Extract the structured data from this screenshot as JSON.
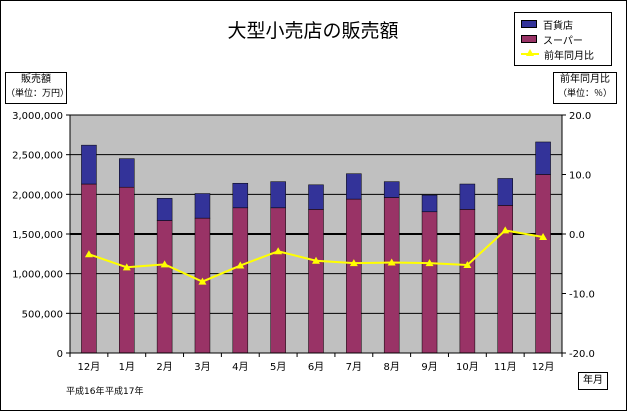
{
  "chart_data": {
    "type": "bar",
    "title": "大型小売店の販売額",
    "left_axis_label_line1": "販売額",
    "left_axis_label_line2": "（単位：万円）",
    "right_axis_label_line1": "前年同月比",
    "right_axis_label_line2": "（単位：％）",
    "x_axis_label": "年月",
    "era_label_1": "平成16年",
    "era_label_2": "平成17年",
    "categories": [
      "12月",
      "1月",
      "2月",
      "3月",
      "4月",
      "5月",
      "6月",
      "7月",
      "8月",
      "9月",
      "10月",
      "11月",
      "12月"
    ],
    "series": [
      {
        "name": "スーパー",
        "color": "#993366",
        "values": [
          2130000,
          2090000,
          1670000,
          1700000,
          1830000,
          1830000,
          1810000,
          1940000,
          1960000,
          1780000,
          1810000,
          1860000,
          2250000
        ]
      },
      {
        "name": "百貨店",
        "color": "#333399",
        "values": [
          490000,
          360000,
          280000,
          310000,
          310000,
          330000,
          310000,
          320000,
          200000,
          210000,
          320000,
          340000,
          410000
        ]
      },
      {
        "name": "前年同月比",
        "color": "#ffff00",
        "axis": "right",
        "values": [
          -3.4,
          -5.6,
          -5.1,
          -8.0,
          -5.3,
          -2.9,
          -4.5,
          -4.9,
          -4.8,
          -4.9,
          -5.2,
          0.6,
          -0.5
        ]
      }
    ],
    "y_left": {
      "min": 0,
      "max": 3000000,
      "step": 500000
    },
    "y_right": {
      "min": -20,
      "max": 20,
      "step": 10
    },
    "left_tick_labels": [
      "0",
      "500,000",
      "1,000,000",
      "1,500,000",
      "2,000,000",
      "2,500,000",
      "3,000,000"
    ],
    "right_tick_labels": [
      "-20.0",
      "-10.0",
      "0.0",
      "10.0",
      "20.0"
    ],
    "plot_background": "#c0c0c0"
  }
}
